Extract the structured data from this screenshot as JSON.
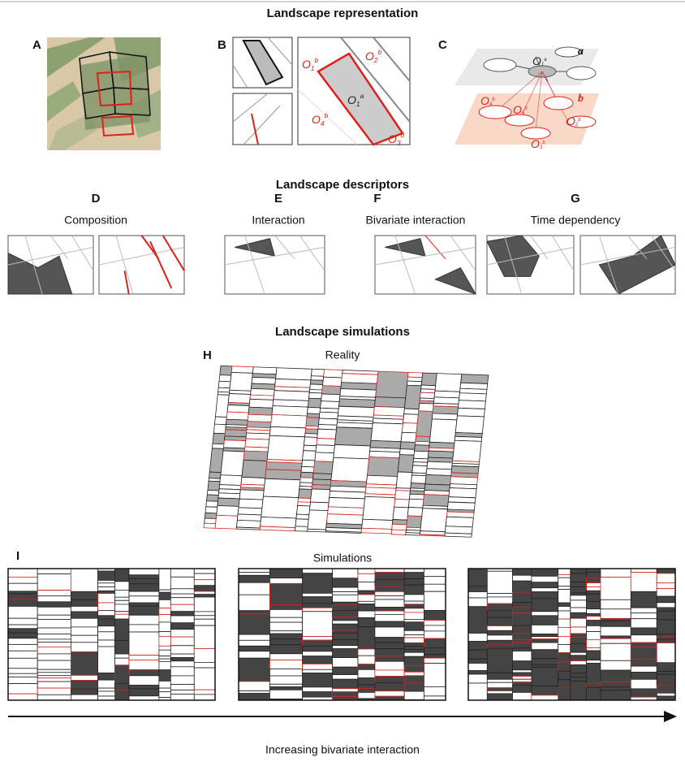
{
  "representation": {
    "title": "Landscape representation",
    "panel_a": "A",
    "panel_b": "B",
    "panel_c": "C",
    "b_labels": [
      {
        "base": "O",
        "sub": "1",
        "sup": "b"
      },
      {
        "base": "O",
        "sub": "2",
        "sup": "b"
      },
      {
        "base": "O",
        "sub": "1",
        "sup": "a"
      },
      {
        "base": "O",
        "sub": "4",
        "sup": "b"
      },
      {
        "base": "O",
        "sub": "3",
        "sup": "b"
      }
    ],
    "c_layer_a": "a",
    "c_layer_b": "b",
    "c_labels": [
      {
        "base": "O",
        "sub": "1",
        "sup": "a"
      },
      {
        "base": "O",
        "sub": "4",
        "sup": "b"
      },
      {
        "base": "O",
        "sub": "5",
        "sup": "b"
      },
      {
        "base": "O",
        "sub": "2",
        "sup": "b"
      },
      {
        "base": "O",
        "sub": "3",
        "sup": "b"
      }
    ]
  },
  "descriptors": {
    "title": "Landscape descriptors",
    "panels": [
      {
        "letter": "D",
        "name": "Composition"
      },
      {
        "letter": "E",
        "name": "Interaction"
      },
      {
        "letter": "F",
        "name": "Bivariate interaction"
      },
      {
        "letter": "G",
        "name": "Time dependency"
      }
    ]
  },
  "simulations": {
    "title": "Landscape simulations",
    "panel_h": "H",
    "reality": "Reality",
    "panel_i": "I",
    "simulations_label": "Simulations",
    "axis_label": "Increasing bivariate interaction"
  }
}
